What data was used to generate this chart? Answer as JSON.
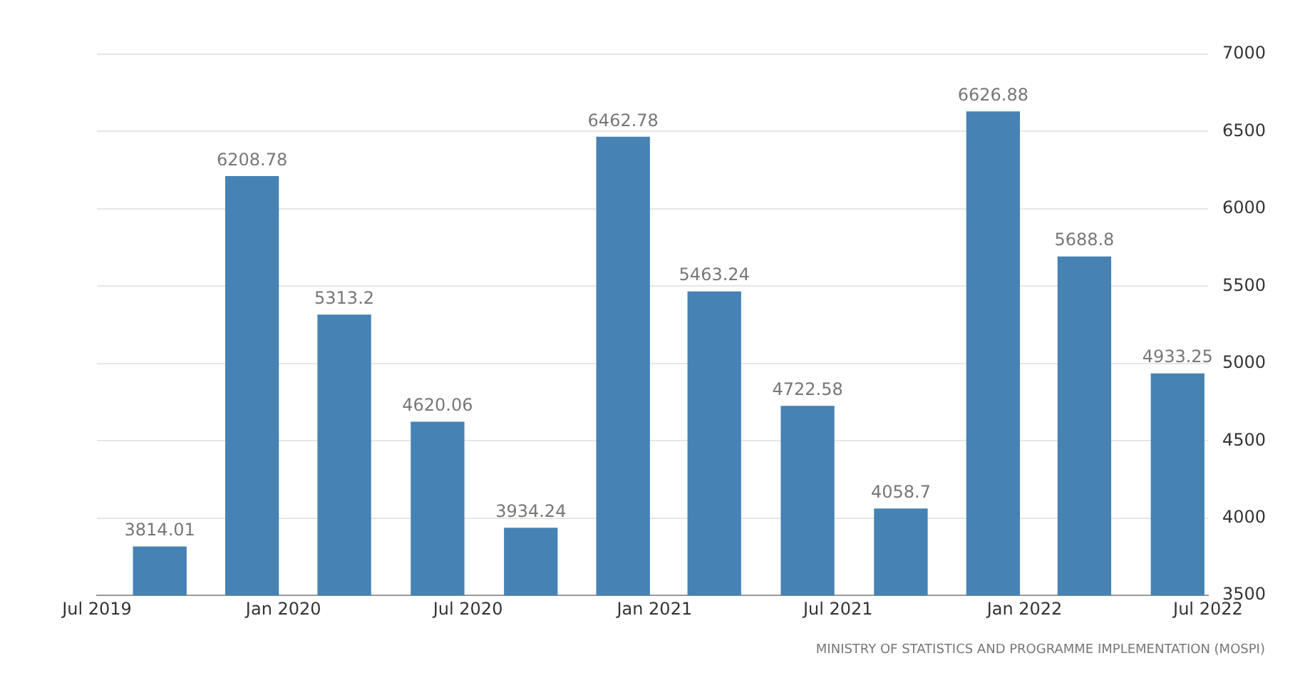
{
  "chart_data": {
    "type": "bar",
    "x": [
      "2019-09",
      "2019-12",
      "2020-03",
      "2020-06",
      "2020-09",
      "2020-12",
      "2021-03",
      "2021-06",
      "2021-09",
      "2021-12",
      "2022-03",
      "2022-06"
    ],
    "values": [
      3814.01,
      6208.78,
      5313.2,
      4620.06,
      3934.24,
      6462.78,
      5463.24,
      4722.58,
      4058.7,
      6626.88,
      5688.8,
      4933.25
    ],
    "color": "#4682b4",
    "data_labels": true,
    "xlim": [
      "2019-07",
      "2022-07"
    ],
    "xticks": [
      {
        "value": "2019-07",
        "label": "Jul 2019"
      },
      {
        "value": "2020-01",
        "label": "Jan 2020"
      },
      {
        "value": "2020-07",
        "label": "Jul 2020"
      },
      {
        "value": "2021-01",
        "label": "Jan 2021"
      },
      {
        "value": "2021-07",
        "label": "Jul 2021"
      },
      {
        "value": "2022-01",
        "label": "Jan 2022"
      },
      {
        "value": "2022-07",
        "label": "Jul 2022"
      }
    ],
    "ylim": [
      3500,
      7000
    ],
    "yticks": [
      3500,
      4000,
      4500,
      5000,
      5500,
      6000,
      6500,
      7000
    ],
    "grid": "y",
    "annotations": [
      "MINISTRY OF STATISTICS AND PROGRAMME IMPLEMENTATION (MOSPI)"
    ]
  }
}
